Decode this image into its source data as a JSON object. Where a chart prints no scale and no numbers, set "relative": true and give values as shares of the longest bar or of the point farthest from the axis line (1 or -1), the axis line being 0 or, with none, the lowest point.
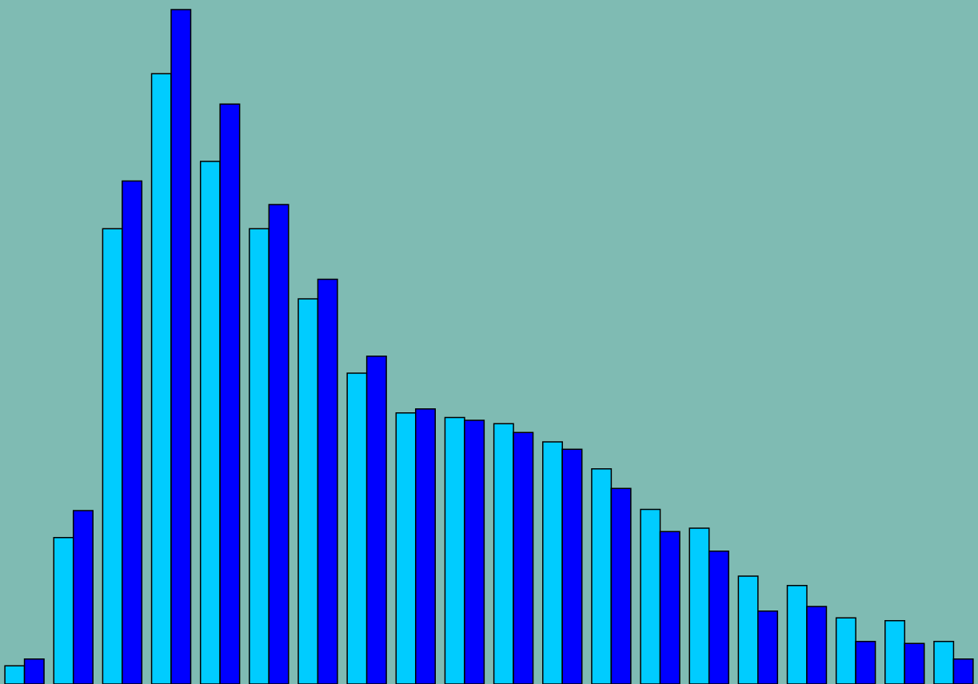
{
  "chart_data": {
    "type": "bar",
    "relative": true,
    "categories": [
      null,
      null,
      null,
      null,
      null,
      null,
      null,
      null,
      null,
      null,
      null,
      null,
      null,
      null,
      null,
      null,
      null,
      null,
      null,
      null
    ],
    "series": [
      {
        "color": "#00ccff",
        "values": [
          0.027,
          0.217,
          0.675,
          0.905,
          0.775,
          0.675,
          0.571,
          0.461,
          0.402,
          0.395,
          0.386,
          0.359,
          0.319,
          0.259,
          0.231,
          0.16,
          0.146,
          0.098,
          0.094,
          0.063
        ]
      },
      {
        "color": "#0000ff",
        "values": [
          0.037,
          0.257,
          0.746,
          1,
          0.86,
          0.711,
          0.6,
          0.486,
          0.408,
          0.391,
          0.373,
          0.348,
          0.29,
          0.226,
          0.197,
          0.108,
          0.115,
          0.063,
          0.06,
          0.037
        ]
      }
    ]
  }
}
